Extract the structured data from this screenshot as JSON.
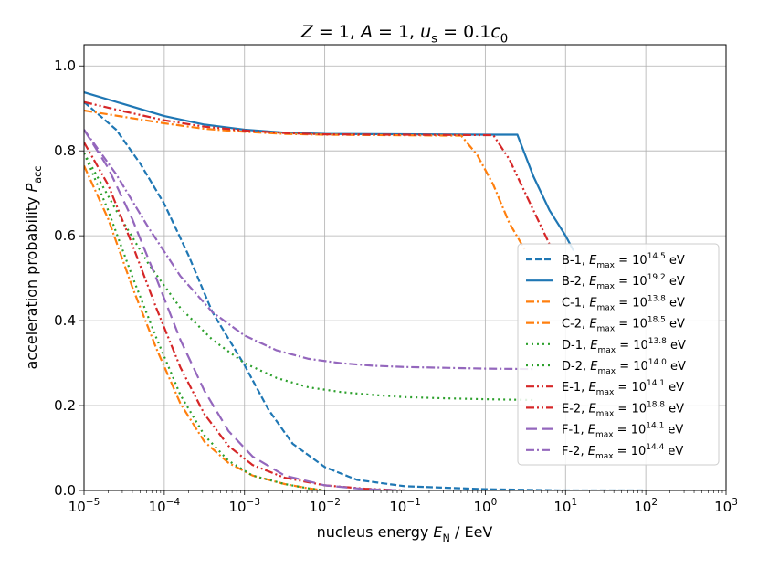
{
  "chart_data": {
    "type": "line",
    "title": {
      "parts": [
        {
          "t": "Z",
          "style": "italic"
        },
        {
          "t": " = 1, "
        },
        {
          "t": "A",
          "style": "italic"
        },
        {
          "t": " = 1, "
        },
        {
          "t": "u",
          "style": "italic"
        },
        {
          "t": "s",
          "shift": "sub"
        },
        {
          "t": " = 0.1"
        },
        {
          "t": "c",
          "style": "italic"
        },
        {
          "t": "0",
          "shift": "sub"
        }
      ]
    },
    "xlabel": {
      "parts": [
        {
          "t": "nucleus energy "
        },
        {
          "t": "E",
          "style": "italic"
        },
        {
          "t": "N",
          "shift": "sub"
        },
        {
          "t": " / EeV"
        }
      ]
    },
    "ylabel": {
      "parts": [
        {
          "t": "acceleration probability "
        },
        {
          "t": "P",
          "style": "italic"
        },
        {
          "t": "acc",
          "shift": "sub"
        }
      ]
    },
    "xscale": "log",
    "xlim_log10": [
      -5,
      3
    ],
    "ylim": [
      0.0,
      1.05
    ],
    "grid": true,
    "legend_location": "right",
    "xticks": [
      {
        "base": "10",
        "exp": "−5"
      },
      {
        "base": "10",
        "exp": "−4"
      },
      {
        "base": "10",
        "exp": "−3"
      },
      {
        "base": "10",
        "exp": "−2"
      },
      {
        "base": "10",
        "exp": "−1"
      },
      {
        "base": "10",
        "exp": "0"
      },
      {
        "base": "10",
        "exp": "1"
      },
      {
        "base": "10",
        "exp": "2"
      },
      {
        "base": "10",
        "exp": "3"
      }
    ],
    "yticks": [
      "0.0",
      "0.2",
      "0.4",
      "0.6",
      "0.8",
      "1.0"
    ],
    "series": [
      {
        "name": "B-1",
        "emax_exp": "14.5",
        "color": "#1f77b4",
        "dash": "dashed",
        "points": [
          [
            -5,
            0.915
          ],
          [
            -4.6,
            0.85
          ],
          [
            -4.3,
            0.77
          ],
          [
            -4,
            0.675
          ],
          [
            -3.7,
            0.555
          ],
          [
            -3.4,
            0.42
          ],
          [
            -3,
            0.295
          ],
          [
            -2.7,
            0.19
          ],
          [
            -2.4,
            0.11
          ],
          [
            -2,
            0.055
          ],
          [
            -1.6,
            0.025
          ],
          [
            -1,
            0.01
          ],
          [
            0,
            0.003
          ],
          [
            1,
            0.0
          ],
          [
            2,
            0.0
          ]
        ]
      },
      {
        "name": "B-2",
        "emax_exp": "19.2",
        "color": "#1f77b4",
        "dash": "solid",
        "points": [
          [
            -5,
            0.938
          ],
          [
            -4.5,
            0.91
          ],
          [
            -4,
            0.882
          ],
          [
            -3.5,
            0.862
          ],
          [
            -3,
            0.85
          ],
          [
            -2.5,
            0.843
          ],
          [
            -2,
            0.84
          ],
          [
            0,
            0.838
          ],
          [
            0.4,
            0.838
          ],
          [
            0.6,
            0.74
          ],
          [
            0.8,
            0.66
          ],
          [
            1.0,
            0.6
          ],
          [
            1.1,
            0.565
          ]
        ]
      },
      {
        "name": "C-1",
        "emax_exp": "13.8",
        "color": "#ff7f0e",
        "dash": "dashdot",
        "points": [
          [
            -5,
            0.765
          ],
          [
            -4.7,
            0.64
          ],
          [
            -4.4,
            0.48
          ],
          [
            -4.1,
            0.335
          ],
          [
            -3.8,
            0.205
          ],
          [
            -3.5,
            0.115
          ],
          [
            -3.2,
            0.065
          ],
          [
            -2.9,
            0.035
          ],
          [
            -2.5,
            0.015
          ],
          [
            -2.2,
            0.005
          ],
          [
            -2,
            0.0
          ]
        ]
      },
      {
        "name": "C-2",
        "emax_exp": "18.5",
        "color": "#ff7f0e",
        "dash": "dashdot",
        "points": [
          [
            -5,
            0.895
          ],
          [
            -4.5,
            0.88
          ],
          [
            -4,
            0.865
          ],
          [
            -3.5,
            0.852
          ],
          [
            -3,
            0.845
          ],
          [
            -2.5,
            0.84
          ],
          [
            -2,
            0.838
          ],
          [
            -0.5,
            0.836
          ],
          [
            -0.3,
            0.836
          ],
          [
            -0.1,
            0.79
          ],
          [
            0.1,
            0.72
          ],
          [
            0.3,
            0.63
          ],
          [
            0.5,
            0.565
          ]
        ]
      },
      {
        "name": "D-1",
        "emax_exp": "13.8",
        "color": "#2ca02c",
        "dash": "dotted",
        "points": [
          [
            -5,
            0.795
          ],
          [
            -4.7,
            0.66
          ],
          [
            -4.4,
            0.505
          ],
          [
            -4.1,
            0.36
          ],
          [
            -3.8,
            0.225
          ],
          [
            -3.5,
            0.13
          ],
          [
            -3.2,
            0.07
          ],
          [
            -2.9,
            0.035
          ],
          [
            -2.5,
            0.015
          ],
          [
            -2.2,
            0.005
          ],
          [
            -2,
            0.0
          ]
        ]
      },
      {
        "name": "D-2",
        "emax_exp": "14.0",
        "color": "#2ca02c",
        "dash": "dotted",
        "points": [
          [
            -5,
            0.795
          ],
          [
            -4.6,
            0.66
          ],
          [
            -4.2,
            0.535
          ],
          [
            -3.8,
            0.43
          ],
          [
            -3.4,
            0.355
          ],
          [
            -3,
            0.3
          ],
          [
            -2.6,
            0.265
          ],
          [
            -2.2,
            0.243
          ],
          [
            -1.8,
            0.232
          ],
          [
            -1.4,
            0.225
          ],
          [
            -1,
            0.22
          ],
          [
            -0.5,
            0.217
          ],
          [
            0,
            0.215
          ],
          [
            0.6,
            0.213
          ]
        ]
      },
      {
        "name": "E-1",
        "emax_exp": "14.1",
        "color": "#d62728",
        "dash": "dashdotdot",
        "points": [
          [
            -5,
            0.82
          ],
          [
            -4.7,
            0.72
          ],
          [
            -4.4,
            0.58
          ],
          [
            -4.1,
            0.43
          ],
          [
            -3.8,
            0.29
          ],
          [
            -3.5,
            0.18
          ],
          [
            -3.2,
            0.105
          ],
          [
            -2.9,
            0.06
          ],
          [
            -2.5,
            0.03
          ],
          [
            -2,
            0.012
          ],
          [
            -1.5,
            0.004
          ],
          [
            -1,
            0.0
          ]
        ]
      },
      {
        "name": "E-2",
        "emax_exp": "18.8",
        "color": "#d62728",
        "dash": "dashdotdot",
        "points": [
          [
            -5,
            0.915
          ],
          [
            -4.5,
            0.893
          ],
          [
            -4,
            0.872
          ],
          [
            -3.5,
            0.857
          ],
          [
            -3,
            0.848
          ],
          [
            -2.5,
            0.842
          ],
          [
            -2,
            0.839
          ],
          [
            0,
            0.837
          ],
          [
            0.1,
            0.837
          ],
          [
            0.3,
            0.78
          ],
          [
            0.5,
            0.7
          ],
          [
            0.7,
            0.62
          ],
          [
            0.8,
            0.58
          ]
        ]
      },
      {
        "name": "F-1",
        "emax_exp": "14.1",
        "color": "#9467bd",
        "dash": "longdash",
        "points": [
          [
            -5,
            0.85
          ],
          [
            -4.7,
            0.76
          ],
          [
            -4.4,
            0.64
          ],
          [
            -4.1,
            0.5
          ],
          [
            -3.8,
            0.355
          ],
          [
            -3.5,
            0.235
          ],
          [
            -3.2,
            0.14
          ],
          [
            -2.9,
            0.08
          ],
          [
            -2.5,
            0.035
          ],
          [
            -2,
            0.012
          ],
          [
            -1.5,
            0.003
          ],
          [
            -1,
            0.0
          ]
        ]
      },
      {
        "name": "F-2",
        "emax_exp": "14.4",
        "color": "#9467bd",
        "dash": "dashdot",
        "points": [
          [
            -5,
            0.85
          ],
          [
            -4.6,
            0.745
          ],
          [
            -4.2,
            0.62
          ],
          [
            -3.8,
            0.505
          ],
          [
            -3.4,
            0.42
          ],
          [
            -3,
            0.365
          ],
          [
            -2.6,
            0.33
          ],
          [
            -2.2,
            0.31
          ],
          [
            -1.8,
            0.3
          ],
          [
            -1.4,
            0.294
          ],
          [
            -1,
            0.291
          ],
          [
            -0.5,
            0.289
          ],
          [
            0,
            0.287
          ],
          [
            0.6,
            0.286
          ]
        ]
      }
    ],
    "legend": {
      "emax_label": "E",
      "emax_sub": "max",
      "emax_base": "10",
      "emax_unit": "eV"
    }
  }
}
